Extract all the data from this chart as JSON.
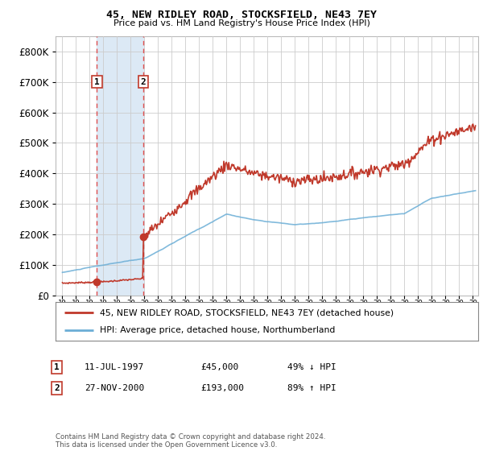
{
  "title": "45, NEW RIDLEY ROAD, STOCKSFIELD, NE43 7EY",
  "subtitle": "Price paid vs. HM Land Registry's House Price Index (HPI)",
  "legend_line1": "45, NEW RIDLEY ROAD, STOCKSFIELD, NE43 7EY (detached house)",
  "legend_line2": "HPI: Average price, detached house, Northumberland",
  "sale1_date": "11-JUL-1997",
  "sale1_price": "£45,000",
  "sale1_hpi": "49% ↓ HPI",
  "sale1_year": 1997.53,
  "sale1_value": 45000,
  "sale2_date": "27-NOV-2000",
  "sale2_price": "£193,000",
  "sale2_hpi": "89% ↑ HPI",
  "sale2_year": 2000.91,
  "sale2_value": 193000,
  "footer": "Contains HM Land Registry data © Crown copyright and database right 2024.\nThis data is licensed under the Open Government Licence v3.0.",
  "hpi_line_color": "#6baed6",
  "price_line_color": "#c0392b",
  "dot_color": "#c0392b",
  "shade_color": "#dce9f5",
  "plot_bg_color": "#ffffff",
  "grid_color": "#cccccc",
  "ylim": [
    0,
    850000
  ],
  "xlim_start": 1994.5,
  "xlim_end": 2025.4
}
